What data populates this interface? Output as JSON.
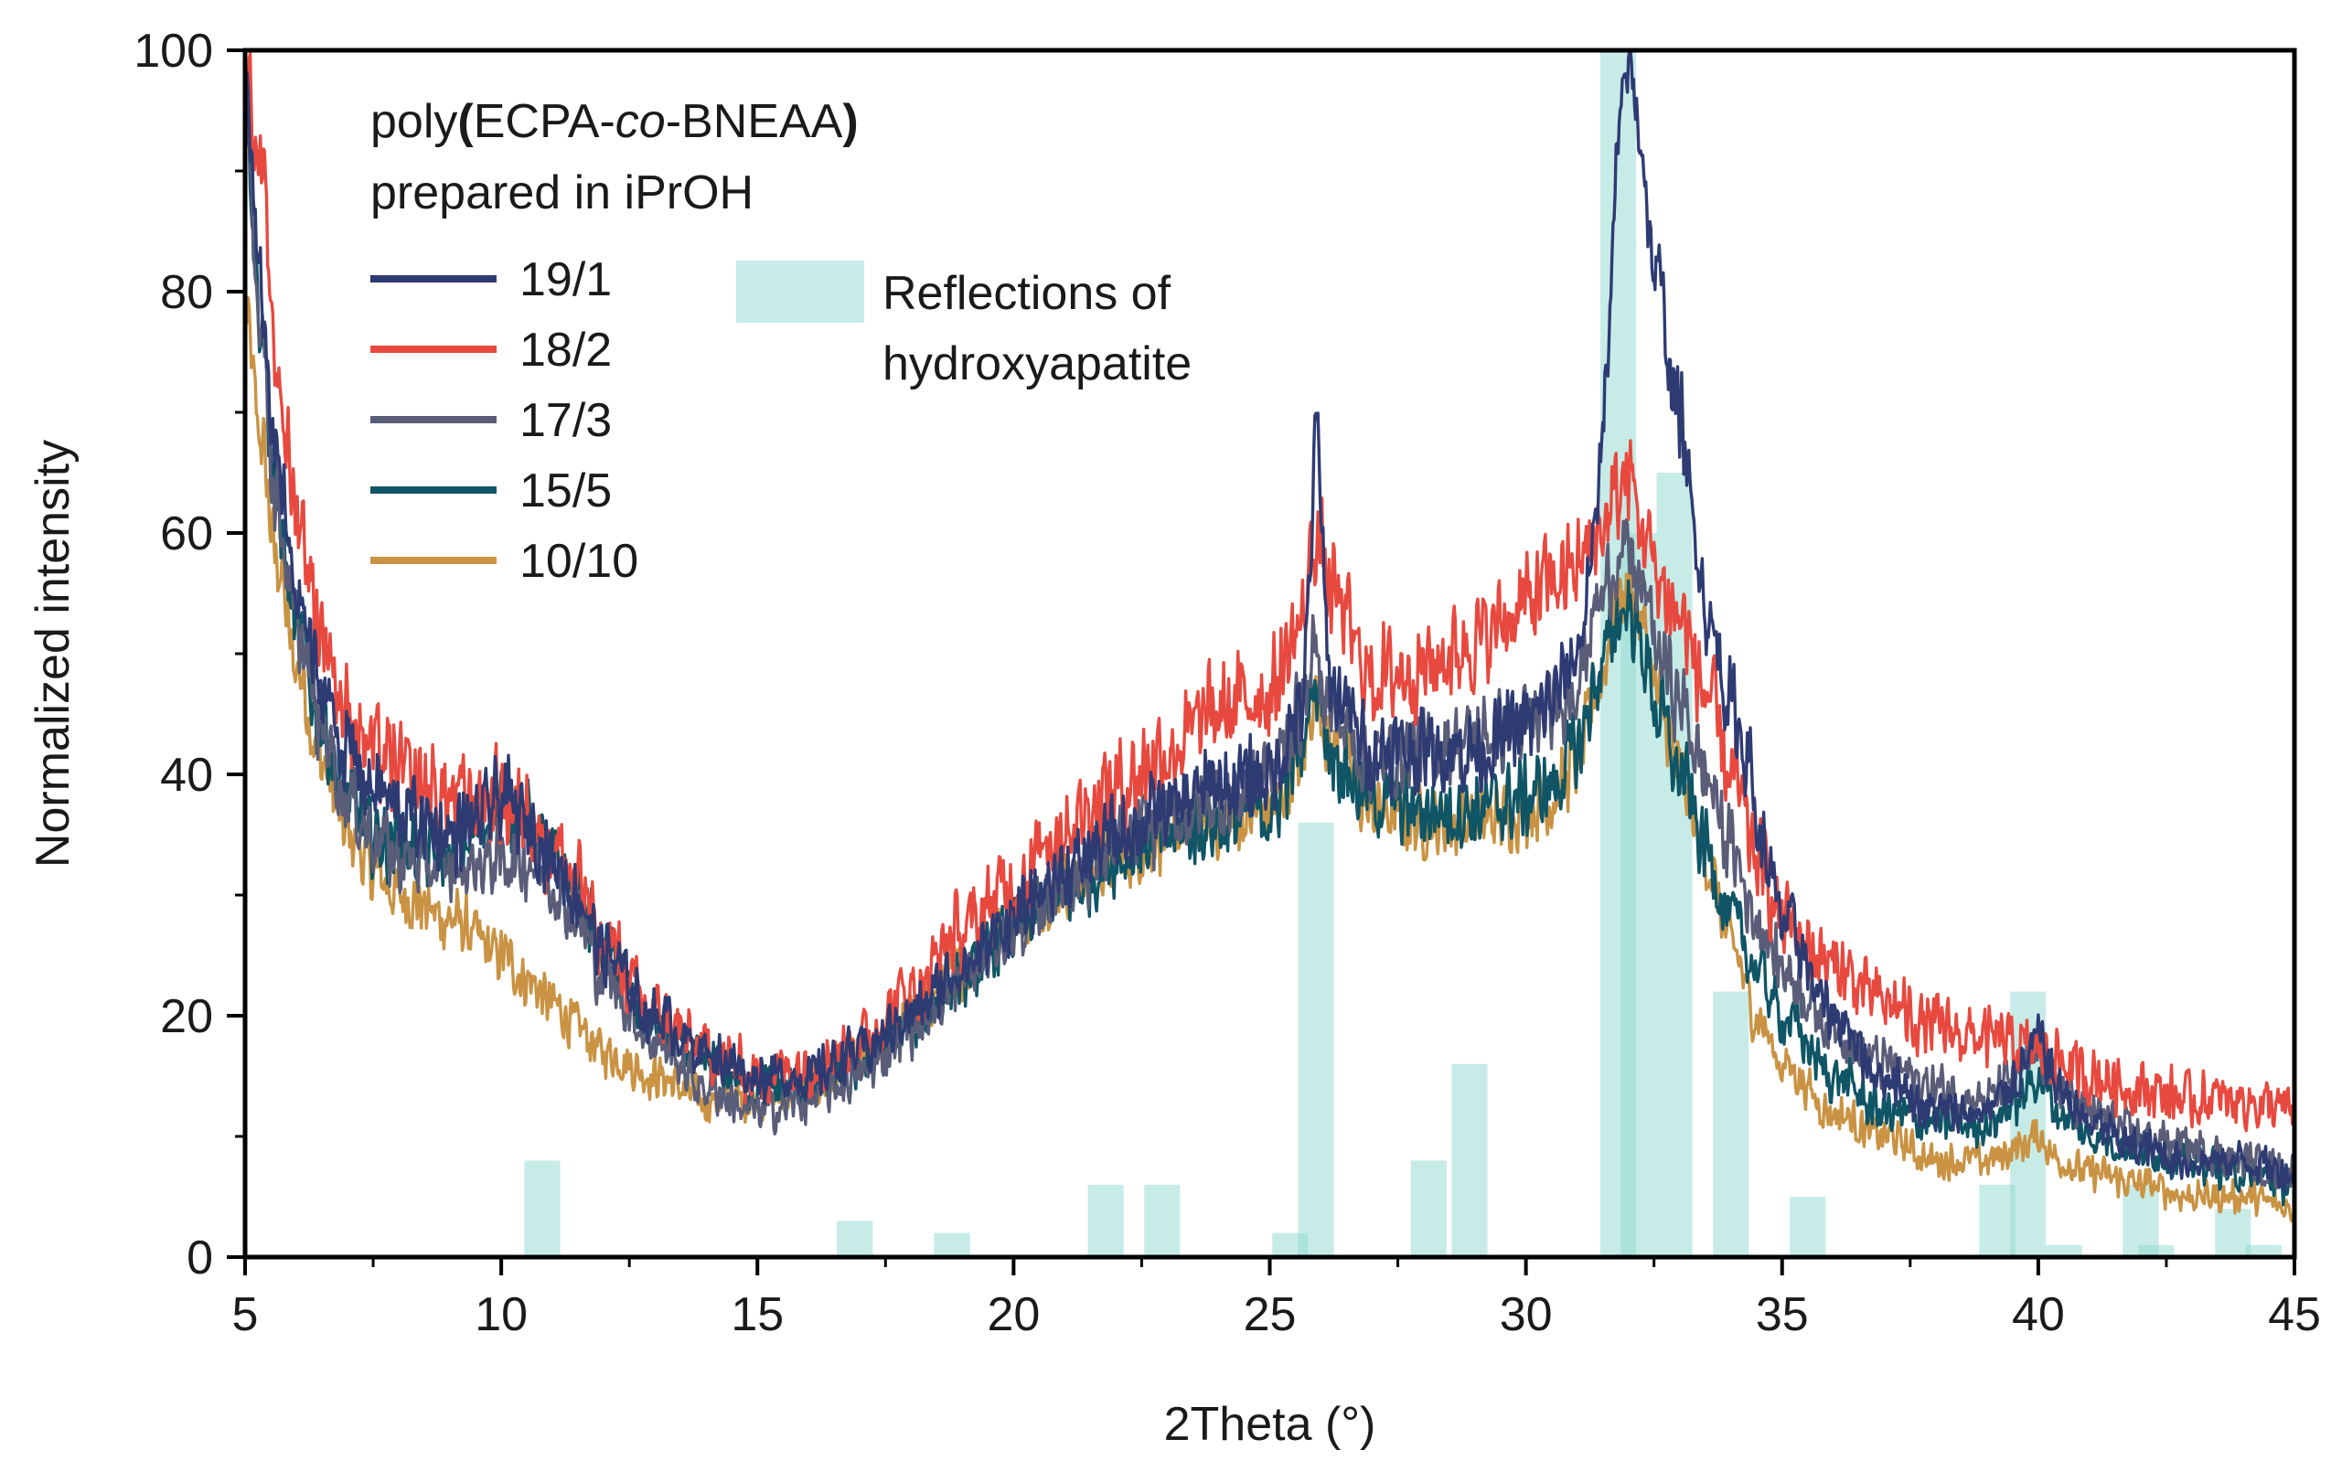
{
  "chart_data": {
    "type": "line",
    "title": "",
    "xlabel": "2Theta (°)",
    "ylabel": "Normalized intensity",
    "xlim": [
      5,
      45
    ],
    "ylim": [
      0,
      100
    ],
    "x_ticks": [
      5,
      10,
      15,
      20,
      25,
      30,
      35,
      40,
      45
    ],
    "y_ticks": [
      0,
      20,
      40,
      60,
      80,
      100
    ],
    "grid": false,
    "legend": {
      "placement": "top-left",
      "title_line1_prefix": "poly",
      "title_line1_paren_open": "(",
      "title_line1_part_a": "ECPA-",
      "title_line1_italic": "co",
      "title_line1_part_b": "-BNEAA",
      "title_line1_paren_close": ")",
      "title_line2": "prepared in iPrOH",
      "reference_label_line1": "Reflections of",
      "reference_label_line2": "hydroxyapatite"
    },
    "reference": {
      "name": "Reflections of hydroxyapatite",
      "color": "#8fd9cf",
      "opacity": 0.5,
      "bar_width": 0.7,
      "bars": [
        {
          "x": 10.8,
          "value": 8
        },
        {
          "x": 16.9,
          "value": 3
        },
        {
          "x": 18.8,
          "value": 2
        },
        {
          "x": 21.8,
          "value": 6
        },
        {
          "x": 22.9,
          "value": 6
        },
        {
          "x": 25.4,
          "value": 2
        },
        {
          "x": 25.9,
          "value": 36
        },
        {
          "x": 28.1,
          "value": 8
        },
        {
          "x": 28.9,
          "value": 16
        },
        {
          "x": 31.8,
          "value": 100
        },
        {
          "x": 32.2,
          "value": 60
        },
        {
          "x": 32.9,
          "value": 65
        },
        {
          "x": 34.0,
          "value": 22
        },
        {
          "x": 35.5,
          "value": 5
        },
        {
          "x": 39.2,
          "value": 6
        },
        {
          "x": 39.8,
          "value": 22
        },
        {
          "x": 40.5,
          "value": 1
        },
        {
          "x": 42.0,
          "value": 6
        },
        {
          "x": 42.3,
          "value": 1
        },
        {
          "x": 43.8,
          "value": 4
        },
        {
          "x": 44.4,
          "value": 1
        }
      ]
    },
    "series": [
      {
        "name": "19/1",
        "color": "#2e3b73",
        "noise": 4.2,
        "points": [
          [
            5,
            98
          ],
          [
            5.3,
            80
          ],
          [
            5.6,
            66
          ],
          [
            6,
            55
          ],
          [
            6.5,
            47
          ],
          [
            7,
            42
          ],
          [
            7.5,
            39
          ],
          [
            8,
            37
          ],
          [
            9,
            35
          ],
          [
            9.5,
            36
          ],
          [
            10,
            38
          ],
          [
            10.5,
            36
          ],
          [
            11,
            33
          ],
          [
            11.5,
            30
          ],
          [
            12,
            25
          ],
          [
            13,
            20
          ],
          [
            14,
            17
          ],
          [
            15,
            15
          ],
          [
            16,
            15
          ],
          [
            17,
            17
          ],
          [
            18,
            20
          ],
          [
            19,
            24
          ],
          [
            20,
            28
          ],
          [
            21,
            32
          ],
          [
            22,
            35
          ],
          [
            23,
            37
          ],
          [
            24,
            39
          ],
          [
            25,
            40
          ],
          [
            25.6,
            45
          ],
          [
            25.8,
            55
          ],
          [
            25.9,
            72
          ],
          [
            26.0,
            60
          ],
          [
            26.2,
            47
          ],
          [
            27,
            42
          ],
          [
            28,
            42
          ],
          [
            29,
            42
          ],
          [
            30,
            44
          ],
          [
            30.5,
            46
          ],
          [
            31,
            50
          ],
          [
            31.3,
            58
          ],
          [
            31.6,
            75
          ],
          [
            31.8,
            92
          ],
          [
            32.0,
            99
          ],
          [
            32.2,
            94
          ],
          [
            32.5,
            82
          ],
          [
            33,
            70
          ],
          [
            33.3,
            60
          ],
          [
            33.6,
            52
          ],
          [
            34,
            46
          ],
          [
            34.3,
            42
          ],
          [
            34.6,
            34
          ],
          [
            35,
            28
          ],
          [
            36,
            20
          ],
          [
            37,
            15
          ],
          [
            38,
            12
          ],
          [
            39,
            12
          ],
          [
            39.6,
            15
          ],
          [
            40,
            18
          ],
          [
            40.4,
            14
          ],
          [
            41,
            11
          ],
          [
            42,
            9
          ],
          [
            43,
            8
          ],
          [
            44,
            8
          ],
          [
            45,
            7
          ]
        ]
      },
      {
        "name": "18/2",
        "color": "#e8493f",
        "noise": 5.0,
        "points": [
          [
            5,
            100
          ],
          [
            5.3,
            90
          ],
          [
            5.6,
            74
          ],
          [
            6,
            62
          ],
          [
            6.5,
            52
          ],
          [
            7,
            45
          ],
          [
            7.5,
            42
          ],
          [
            8,
            40
          ],
          [
            9,
            38
          ],
          [
            10,
            38
          ],
          [
            10.5,
            37
          ],
          [
            11,
            34
          ],
          [
            11.5,
            31
          ],
          [
            12,
            26
          ],
          [
            13,
            20
          ],
          [
            14,
            17
          ],
          [
            15,
            15
          ],
          [
            16,
            16
          ],
          [
            17,
            18
          ],
          [
            18,
            22
          ],
          [
            19,
            27
          ],
          [
            20,
            31
          ],
          [
            21,
            36
          ],
          [
            22,
            39
          ],
          [
            23,
            42
          ],
          [
            24,
            45
          ],
          [
            25,
            47
          ],
          [
            25.6,
            52
          ],
          [
            25.9,
            60
          ],
          [
            26.2,
            55
          ],
          [
            27,
            48
          ],
          [
            28,
            49
          ],
          [
            29,
            51
          ],
          [
            30,
            54
          ],
          [
            30.5,
            56
          ],
          [
            31,
            57
          ],
          [
            31.4,
            60
          ],
          [
            31.8,
            63
          ],
          [
            32.0,
            65
          ],
          [
            32.3,
            60
          ],
          [
            32.6,
            56
          ],
          [
            33,
            53
          ],
          [
            33.5,
            47
          ],
          [
            34,
            40
          ],
          [
            34.5,
            33
          ],
          [
            35,
            28
          ],
          [
            36,
            24
          ],
          [
            37,
            21
          ],
          [
            38,
            19
          ],
          [
            39,
            18
          ],
          [
            40,
            17
          ],
          [
            41,
            15
          ],
          [
            42,
            14
          ],
          [
            43,
            13
          ],
          [
            44,
            13
          ],
          [
            45,
            12
          ]
        ]
      },
      {
        "name": "17/3",
        "color": "#5a5d78",
        "noise": 4.2,
        "points": [
          [
            5,
            95
          ],
          [
            5.3,
            78
          ],
          [
            5.6,
            63
          ],
          [
            6,
            52
          ],
          [
            6.5,
            44
          ],
          [
            7,
            38
          ],
          [
            7.5,
            35
          ],
          [
            8,
            33
          ],
          [
            9,
            32
          ],
          [
            10,
            33
          ],
          [
            10.5,
            33
          ],
          [
            11,
            31
          ],
          [
            11.5,
            28
          ],
          [
            12,
            23
          ],
          [
            13,
            18
          ],
          [
            14,
            14
          ],
          [
            15,
            12
          ],
          [
            16,
            13
          ],
          [
            17,
            15
          ],
          [
            18,
            19
          ],
          [
            19,
            23
          ],
          [
            20,
            27
          ],
          [
            21,
            31
          ],
          [
            22,
            34
          ],
          [
            23,
            36
          ],
          [
            24,
            38
          ],
          [
            25,
            40
          ],
          [
            25.6,
            45
          ],
          [
            25.9,
            50
          ],
          [
            26.2,
            45
          ],
          [
            27,
            41
          ],
          [
            28,
            42
          ],
          [
            29,
            43
          ],
          [
            30,
            44
          ],
          [
            30.5,
            45
          ],
          [
            31,
            48
          ],
          [
            31.4,
            54
          ],
          [
            31.8,
            58
          ],
          [
            32.0,
            58
          ],
          [
            32.3,
            55
          ],
          [
            32.6,
            50
          ],
          [
            33,
            46
          ],
          [
            33.5,
            40
          ],
          [
            34,
            34
          ],
          [
            34.5,
            28
          ],
          [
            35,
            24
          ],
          [
            36,
            19
          ],
          [
            37,
            16
          ],
          [
            38,
            14
          ],
          [
            39,
            13
          ],
          [
            39.6,
            15
          ],
          [
            40,
            17
          ],
          [
            40.4,
            14
          ],
          [
            41,
            12
          ],
          [
            42,
            10
          ],
          [
            43,
            9
          ],
          [
            44,
            8
          ],
          [
            45,
            7
          ]
        ]
      },
      {
        "name": "15/5",
        "color": "#0f5566",
        "noise": 4.2,
        "points": [
          [
            5,
            96
          ],
          [
            5.3,
            78
          ],
          [
            5.6,
            63
          ],
          [
            6,
            52
          ],
          [
            6.5,
            44
          ],
          [
            7,
            38
          ],
          [
            7.5,
            35
          ],
          [
            8,
            34
          ],
          [
            9,
            33
          ],
          [
            9.5,
            35
          ],
          [
            10,
            38
          ],
          [
            10.5,
            36
          ],
          [
            11,
            33
          ],
          [
            11.5,
            30
          ],
          [
            12,
            25
          ],
          [
            13,
            19
          ],
          [
            14,
            16
          ],
          [
            15,
            14
          ],
          [
            16,
            14
          ],
          [
            17,
            16
          ],
          [
            18,
            19
          ],
          [
            19,
            23
          ],
          [
            20,
            27
          ],
          [
            21,
            30
          ],
          [
            22,
            33
          ],
          [
            23,
            35
          ],
          [
            24,
            36
          ],
          [
            25,
            37
          ],
          [
            25.6,
            42
          ],
          [
            25.9,
            48
          ],
          [
            26.2,
            42
          ],
          [
            27,
            38
          ],
          [
            28,
            37
          ],
          [
            29,
            37
          ],
          [
            30,
            38
          ],
          [
            30.5,
            39
          ],
          [
            31,
            42
          ],
          [
            31.4,
            48
          ],
          [
            31.8,
            53
          ],
          [
            32.0,
            54
          ],
          [
            32.3,
            50
          ],
          [
            32.6,
            45
          ],
          [
            33,
            40
          ],
          [
            33.5,
            34
          ],
          [
            34,
            28
          ],
          [
            34.5,
            24
          ],
          [
            35,
            20
          ],
          [
            36,
            15
          ],
          [
            37,
            12
          ],
          [
            38,
            11
          ],
          [
            39,
            11
          ],
          [
            39.6,
            13
          ],
          [
            40,
            15
          ],
          [
            40.4,
            12
          ],
          [
            41,
            10
          ],
          [
            42,
            9
          ],
          [
            43,
            8
          ],
          [
            44,
            7
          ],
          [
            45,
            6
          ]
        ]
      },
      {
        "name": "10/10",
        "color": "#c99343",
        "noise": 3.8,
        "points": [
          [
            5,
            78
          ],
          [
            5.3,
            68
          ],
          [
            5.6,
            58
          ],
          [
            6,
            49
          ],
          [
            6.5,
            41
          ],
          [
            7,
            35
          ],
          [
            7.5,
            32
          ],
          [
            8,
            30
          ],
          [
            9,
            28
          ],
          [
            10,
            25
          ],
          [
            10.5,
            23
          ],
          [
            11,
            21
          ],
          [
            11.5,
            19
          ],
          [
            12,
            17
          ],
          [
            13,
            15
          ],
          [
            14,
            13
          ],
          [
            15,
            13
          ],
          [
            16,
            14
          ],
          [
            17,
            16
          ],
          [
            18,
            20
          ],
          [
            19,
            24
          ],
          [
            20,
            28
          ],
          [
            21,
            31
          ],
          [
            22,
            33
          ],
          [
            23,
            35
          ],
          [
            24,
            36
          ],
          [
            25,
            37
          ],
          [
            25.6,
            41
          ],
          [
            25.9,
            47
          ],
          [
            26.2,
            42
          ],
          [
            27,
            37
          ],
          [
            28,
            36
          ],
          [
            29,
            36
          ],
          [
            30,
            37
          ],
          [
            30.5,
            38
          ],
          [
            31,
            41
          ],
          [
            31.4,
            47
          ],
          [
            31.8,
            54
          ],
          [
            32.0,
            56
          ],
          [
            32.3,
            52
          ],
          [
            32.6,
            46
          ],
          [
            33,
            40
          ],
          [
            33.5,
            33
          ],
          [
            34,
            26
          ],
          [
            34.5,
            20
          ],
          [
            35,
            16
          ],
          [
            36,
            12
          ],
          [
            37,
            10
          ],
          [
            38,
            8
          ],
          [
            39,
            8
          ],
          [
            39.6,
            9
          ],
          [
            40,
            10
          ],
          [
            40.4,
            8
          ],
          [
            41,
            7
          ],
          [
            42,
            6
          ],
          [
            43,
            5
          ],
          [
            44,
            5
          ],
          [
            45,
            4
          ]
        ]
      }
    ]
  }
}
